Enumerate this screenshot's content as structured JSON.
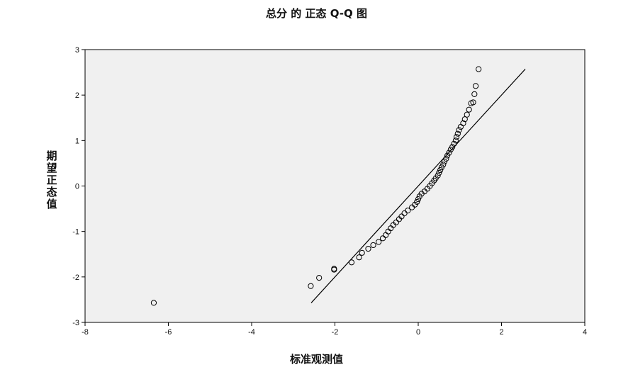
{
  "chart_data": {
    "type": "scatter",
    "title": "总分 的 正态 Q-Q 图",
    "xlabel": "标准观测值",
    "ylabel": "期望正态值",
    "xlim": [
      -8,
      4
    ],
    "ylim": [
      -3,
      3
    ],
    "xticks": [
      -8,
      -6,
      -4,
      -2,
      0,
      2,
      4
    ],
    "yticks": [
      -3,
      -2,
      -1,
      0,
      1,
      2,
      3
    ],
    "grid": false,
    "reference_line": {
      "x": [
        -2.57,
        2.57
      ],
      "y": [
        -2.57,
        2.57
      ]
    },
    "series": [
      {
        "values": [
          [
            -6.35,
            -2.57
          ],
          [
            -2.58,
            -2.2
          ],
          [
            -2.38,
            -2.02
          ],
          [
            -2.02,
            -1.84
          ],
          [
            -2.02,
            -1.82
          ],
          [
            -1.6,
            -1.68
          ],
          [
            -1.42,
            -1.57
          ],
          [
            -1.35,
            -1.47
          ],
          [
            -1.2,
            -1.38
          ],
          [
            -1.08,
            -1.3
          ],
          [
            -0.95,
            -1.23
          ],
          [
            -0.85,
            -1.15
          ],
          [
            -0.78,
            -1.08
          ],
          [
            -0.72,
            -1.0
          ],
          [
            -0.66,
            -0.93
          ],
          [
            -0.6,
            -0.86
          ],
          [
            -0.53,
            -0.8
          ],
          [
            -0.46,
            -0.73
          ],
          [
            -0.4,
            -0.67
          ],
          [
            -0.33,
            -0.6
          ],
          [
            -0.25,
            -0.54
          ],
          [
            -0.15,
            -0.47
          ],
          [
            -0.08,
            -0.41
          ],
          [
            -0.03,
            -0.35
          ],
          [
            0.0,
            -0.29
          ],
          [
            0.03,
            -0.23
          ],
          [
            0.08,
            -0.17
          ],
          [
            0.15,
            -0.12
          ],
          [
            0.22,
            -0.06
          ],
          [
            0.28,
            0.0
          ],
          [
            0.33,
            0.06
          ],
          [
            0.38,
            0.12
          ],
          [
            0.42,
            0.17
          ],
          [
            0.47,
            0.23
          ],
          [
            0.5,
            0.29
          ],
          [
            0.53,
            0.35
          ],
          [
            0.56,
            0.41
          ],
          [
            0.6,
            0.47
          ],
          [
            0.63,
            0.54
          ],
          [
            0.67,
            0.6
          ],
          [
            0.7,
            0.67
          ],
          [
            0.74,
            0.73
          ],
          [
            0.78,
            0.8
          ],
          [
            0.82,
            0.86
          ],
          [
            0.86,
            0.93
          ],
          [
            0.9,
            1.0
          ],
          [
            0.92,
            1.08
          ],
          [
            0.95,
            1.15
          ],
          [
            0.98,
            1.23
          ],
          [
            1.02,
            1.3
          ],
          [
            1.08,
            1.38
          ],
          [
            1.12,
            1.47
          ],
          [
            1.17,
            1.57
          ],
          [
            1.22,
            1.68
          ],
          [
            1.27,
            1.82
          ],
          [
            1.32,
            1.84
          ],
          [
            1.35,
            2.02
          ],
          [
            1.38,
            2.2
          ],
          [
            1.45,
            2.57
          ]
        ]
      }
    ],
    "marker": "open-circle",
    "colors": {
      "plot_background": "#f0f0f0",
      "marker_stroke": "#000000",
      "line": "#000000"
    }
  }
}
